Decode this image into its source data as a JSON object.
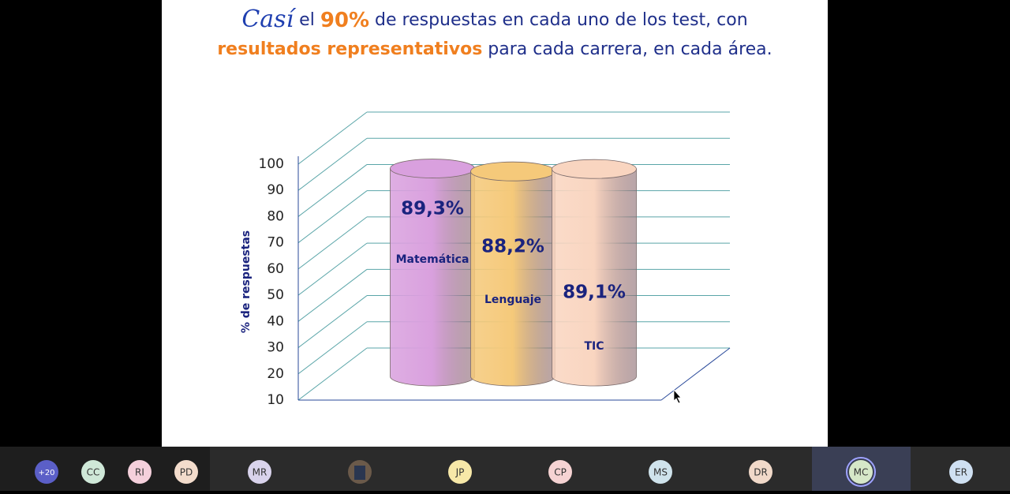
{
  "slide": {
    "title_line1": [
      "Casí",
      " el ",
      "90%",
      " de respuestas en cada uno de los test, con"
    ],
    "title_line2": [
      "resultados representativos",
      " para cada carrera, en cada área."
    ]
  },
  "chart_data": {
    "type": "bar",
    "ylabel": "% de respuestas",
    "categories": [
      "Matemática",
      "Lenguaje",
      "TIC"
    ],
    "values": [
      89.3,
      88.2,
      89.1
    ],
    "value_labels": [
      "89,3%",
      "88,2%",
      "89,1%"
    ],
    "colors": [
      "#d9a0de",
      "#f5c97a",
      "#f9d5c0"
    ],
    "ylim": [
      10,
      100
    ],
    "yticks": [
      10,
      20,
      30,
      40,
      50,
      60,
      70,
      80,
      90,
      100
    ],
    "grid": true
  },
  "participants": [
    "+20",
    "CC",
    "RI",
    "PD",
    "MR",
    "JP",
    "CP",
    "MS",
    "DR",
    "MC",
    "ER"
  ]
}
